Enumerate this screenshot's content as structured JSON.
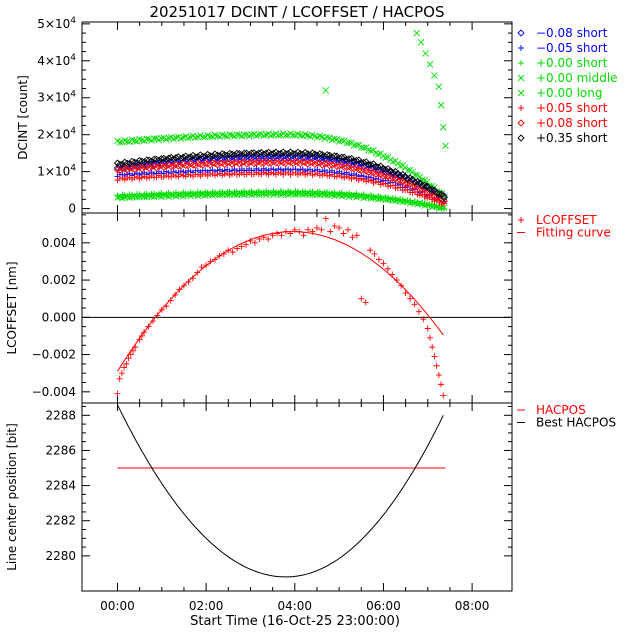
{
  "title": "20251017 DCINT / LCOFFSET / HACPOS",
  "xlabel": "Start Time (16-Oct-25 23:00:00)",
  "x_ticks": [
    "00:00",
    "02:00",
    "04:00",
    "06:00",
    "08:00"
  ],
  "colors": {
    "black": "#000000",
    "blue": "#0000ff",
    "green": "#00dd00",
    "red": "#ff0000"
  },
  "chart_data": [
    {
      "type": "scatter",
      "ylabel": "DCINT [count]",
      "xlim_hours": [
        -0.8,
        8.9
      ],
      "ylim": [
        -1200,
        50500
      ],
      "y_ticks": [
        0,
        10000,
        20000,
        30000,
        40000,
        50000
      ],
      "y_tick_labels": [
        {
          "mant": "0",
          "exp": ""
        },
        {
          "mant": "1×10",
          "exp": "4"
        },
        {
          "mant": "2×10",
          "exp": "4"
        },
        {
          "mant": "3×10",
          "exp": "4"
        },
        {
          "mant": "4×10",
          "exp": "4"
        },
        {
          "mant": "5×10",
          "exp": "4"
        }
      ],
      "legend_position": "right",
      "series": [
        {
          "name": "−0.08 short",
          "marker": "diamond",
          "color": "#0000ff",
          "peak_hour": 3.8,
          "start_value": 11000,
          "peak_value": 14000,
          "end_hour": 7.4,
          "end_value": 3000
        },
        {
          "name": "−0.05 short",
          "marker": "plus",
          "color": "#0000ff",
          "peak_hour": 3.8,
          "start_value": 9000,
          "peak_value": 10500,
          "end_hour": 7.4,
          "end_value": 1500
        },
        {
          "name": "+0.00 short",
          "marker": "plus",
          "color": "#00dd00",
          "peak_hour": 3.8,
          "start_value": 3500,
          "peak_value": 4500,
          "end_hour": 7.4,
          "end_value": 0
        },
        {
          "name": "+0.00 middle",
          "marker": "x",
          "color": "#00dd00",
          "peak_hour": 3.8,
          "start_value": 18000,
          "peak_value": 20000,
          "end_hour": 7.4,
          "end_value": 3000,
          "extra_points": [
            [
              4.7,
              32000
            ],
            [
              6.75,
              47500
            ],
            [
              6.85,
              45000
            ],
            [
              6.95,
              42000
            ],
            [
              7.05,
              39000
            ],
            [
              7.15,
              36000
            ],
            [
              7.25,
              33000
            ],
            [
              7.3,
              28000
            ],
            [
              7.35,
              22000
            ],
            [
              7.4,
              17000
            ]
          ]
        },
        {
          "name": "+0.00 long",
          "marker": "x",
          "color": "#00dd00",
          "peak_hour": 3.8,
          "start_value": 3000,
          "peak_value": 4000,
          "end_hour": 7.4,
          "end_value": 0
        },
        {
          "name": "+0.05 short",
          "marker": "plus",
          "color": "#ff0000",
          "peak_hour": 3.8,
          "start_value": 8000,
          "peak_value": 9500,
          "end_hour": 7.4,
          "end_value": 1000
        },
        {
          "name": "+0.08 short",
          "marker": "diamond",
          "color": "#ff0000",
          "peak_hour": 3.8,
          "start_value": 10500,
          "peak_value": 12500,
          "end_hour": 7.4,
          "end_value": 2000
        },
        {
          "name": "+0.35 short",
          "marker": "diamond",
          "color": "#000000",
          "peak_hour": 3.8,
          "start_value": 12000,
          "peak_value": 15000,
          "end_hour": 7.4,
          "end_value": 3000
        }
      ]
    },
    {
      "type": "scatter",
      "ylabel": "LCOFFSET [nm]",
      "xlim_hours": [
        -0.8,
        8.9
      ],
      "ylim": [
        -0.0046,
        0.0056
      ],
      "y_ticks": [
        -0.004,
        -0.002,
        0.0,
        0.002,
        0.004
      ],
      "y_tick_labels": [
        "−0.004",
        "−0.002",
        "0.000",
        "0.002",
        "0.004"
      ],
      "zero_line": 0,
      "legend_position": "right",
      "series": [
        {
          "name": "LCOFFSET",
          "marker": "plus",
          "color": "#ff0000",
          "points": [
            [
              0.0,
              -0.0041
            ],
            [
              0.05,
              -0.0033
            ],
            [
              0.1,
              -0.003
            ],
            [
              0.15,
              -0.0027
            ],
            [
              0.2,
              -0.0025
            ],
            [
              0.25,
              -0.0022
            ],
            [
              0.3,
              -0.002
            ],
            [
              0.35,
              -0.0018
            ],
            [
              0.4,
              -0.0016
            ],
            [
              0.5,
              -0.0012
            ],
            [
              0.55,
              -0.001
            ],
            [
              0.6,
              -0.0008
            ],
            [
              0.7,
              -0.0005
            ],
            [
              0.8,
              -0.0002
            ],
            [
              0.9,
              0.0001
            ],
            [
              1.0,
              0.0004
            ],
            [
              1.1,
              0.0006
            ],
            [
              1.2,
              0.0009
            ],
            [
              1.3,
              0.0012
            ],
            [
              1.4,
              0.0015
            ],
            [
              1.5,
              0.0017
            ],
            [
              1.6,
              0.0019
            ],
            [
              1.7,
              0.0021
            ],
            [
              1.8,
              0.0024
            ],
            [
              1.9,
              0.0027
            ],
            [
              2.0,
              0.0028
            ],
            [
              2.1,
              0.003
            ],
            [
              2.2,
              0.0031
            ],
            [
              2.3,
              0.0033
            ],
            [
              2.4,
              0.0034
            ],
            [
              2.5,
              0.0036
            ],
            [
              2.6,
              0.0035
            ],
            [
              2.7,
              0.0037
            ],
            [
              2.8,
              0.0038
            ],
            [
              2.9,
              0.0039
            ],
            [
              3.0,
              0.0041
            ],
            [
              3.1,
              0.004
            ],
            [
              3.2,
              0.0042
            ],
            [
              3.3,
              0.0043
            ],
            [
              3.4,
              0.0042
            ],
            [
              3.5,
              0.0044
            ],
            [
              3.6,
              0.0045
            ],
            [
              3.7,
              0.0044
            ],
            [
              3.8,
              0.0046
            ],
            [
              3.9,
              0.0045
            ],
            [
              4.0,
              0.0047
            ],
            [
              4.1,
              0.0046
            ],
            [
              4.2,
              0.0044
            ],
            [
              4.3,
              0.0047
            ],
            [
              4.4,
              0.0046
            ],
            [
              4.5,
              0.0048
            ],
            [
              4.6,
              0.0047
            ],
            [
              4.7,
              0.0053
            ],
            [
              4.8,
              0.0046
            ],
            [
              4.9,
              0.0049
            ],
            [
              5.0,
              0.0048
            ],
            [
              5.1,
              0.0045
            ],
            [
              5.2,
              0.0047
            ],
            [
              5.3,
              0.0043
            ],
            [
              5.4,
              0.0044
            ],
            [
              5.5,
              0.001
            ],
            [
              5.6,
              0.0008
            ],
            [
              5.7,
              0.0036
            ],
            [
              5.8,
              0.0034
            ],
            [
              5.9,
              0.0031
            ],
            [
              6.0,
              0.0029
            ],
            [
              6.1,
              0.0026
            ],
            [
              6.2,
              0.0023
            ],
            [
              6.3,
              0.002
            ],
            [
              6.4,
              0.0017
            ],
            [
              6.5,
              0.0013
            ],
            [
              6.6,
              0.001
            ],
            [
              6.7,
              0.0007
            ],
            [
              6.8,
              0.0003
            ],
            [
              6.9,
              -0.0001
            ],
            [
              7.0,
              -0.0006
            ],
            [
              7.05,
              -0.0011
            ],
            [
              7.1,
              -0.0016
            ],
            [
              7.15,
              -0.0021
            ],
            [
              7.2,
              -0.0026
            ],
            [
              7.25,
              -0.0031
            ],
            [
              7.3,
              -0.0036
            ],
            [
              7.35,
              -0.0042
            ]
          ]
        },
        {
          "name": "Fitting curve",
          "type": "line",
          "color": "#ff0000",
          "x_start": 0.0,
          "x_end": 7.35,
          "peak_hour": 3.95,
          "peak_value": 0.0046,
          "start_value": -0.0029
        }
      ]
    },
    {
      "type": "line",
      "ylabel": "Line center position [bit]",
      "xlim_hours": [
        -0.8,
        8.9
      ],
      "ylim": [
        2278.0,
        2288.7
      ],
      "y_ticks": [
        2280,
        2282,
        2284,
        2286,
        2288
      ],
      "y_tick_labels": [
        "2280",
        "2282",
        "2284",
        "2286",
        "2288"
      ],
      "legend_position": "right",
      "series": [
        {
          "name": "HACPOS",
          "color": "#ff0000",
          "x": [
            0.0,
            7.4
          ],
          "y": [
            2285,
            2285
          ]
        },
        {
          "name": "Best HACPOS",
          "color": "#000000",
          "x_start": 0.0,
          "x_end": 7.35,
          "min_hour": 3.8,
          "min_value": 2278.8,
          "start_value": 2288.6,
          "end_value": 2288.0
        }
      ]
    }
  ]
}
